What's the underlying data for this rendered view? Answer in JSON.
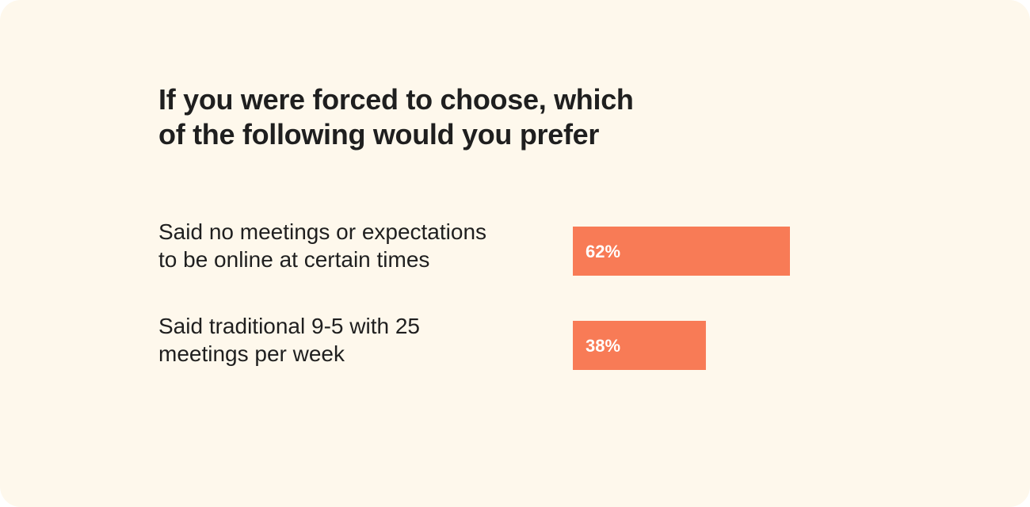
{
  "title_lines": [
    "If you were forced to choose, which",
    "of the following would you prefer"
  ],
  "colors": {
    "background": "#FEF8EC",
    "bar": "#F87B56",
    "bar_text": "#FFFFFF",
    "text": "#1F1F1F"
  },
  "chart_data": {
    "type": "bar",
    "orientation": "horizontal",
    "title": "If you were forced to choose, which of the following would you prefer",
    "categories": [
      [
        "Said no meetings or expectations",
        "to be online at certain times"
      ],
      [
        "Said traditional 9-5 with 25",
        "meetings per week"
      ]
    ],
    "values": [
      62,
      38
    ],
    "value_labels": [
      "62%",
      "38%"
    ],
    "unit": "%",
    "xlim": [
      0,
      100
    ],
    "grid": false,
    "legend": "none"
  }
}
